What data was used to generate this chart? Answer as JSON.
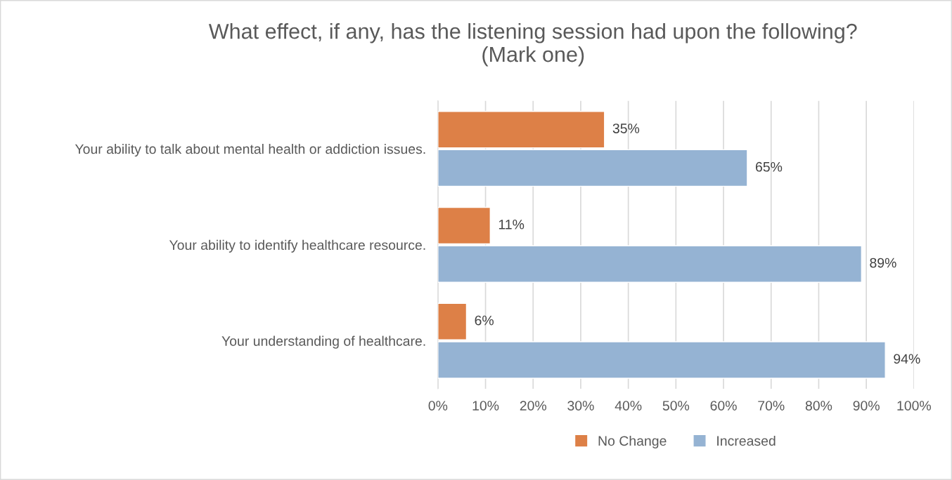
{
  "chart_data": {
    "type": "bar",
    "orientation": "horizontal",
    "title": "What effect, if any, has the listening session had upon the following?\n(Mark one)",
    "categories": [
      "Your ability to talk about mental health or addiction issues.",
      "Your ability to identify healthcare resource.",
      "Your understanding of healthcare."
    ],
    "series": [
      {
        "name": "No Change",
        "color": "#dd8047",
        "values": [
          35,
          11,
          6
        ],
        "value_labels": [
          "35%",
          "11%",
          "6%"
        ]
      },
      {
        "name": "Increased",
        "color": "#95b3d3",
        "values": [
          65,
          89,
          94
        ],
        "value_labels": [
          "65%",
          "89%",
          "94%"
        ]
      }
    ],
    "xlim": [
      0,
      100
    ],
    "xticks": [
      {
        "value": 0,
        "label": "0%"
      },
      {
        "value": 10,
        "label": "10%"
      },
      {
        "value": 20,
        "label": "20%"
      },
      {
        "value": 30,
        "label": "30%"
      },
      {
        "value": 40,
        "label": "40%"
      },
      {
        "value": 50,
        "label": "50%"
      },
      {
        "value": 60,
        "label": "60%"
      },
      {
        "value": 70,
        "label": "70%"
      },
      {
        "value": 80,
        "label": "80%"
      },
      {
        "value": 90,
        "label": "90%"
      },
      {
        "value": 100,
        "label": "100%"
      }
    ],
    "grid": "x",
    "legend": "bottom"
  }
}
